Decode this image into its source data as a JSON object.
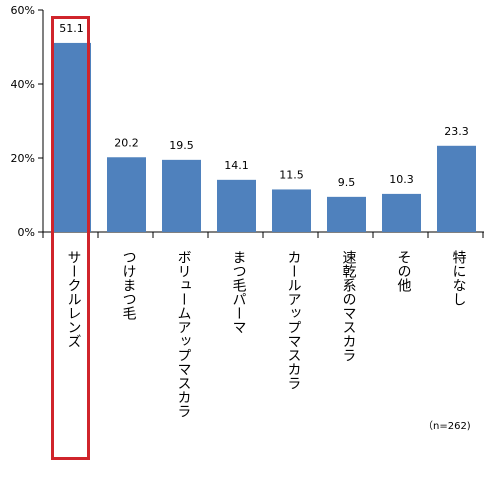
{
  "chart_data": {
    "type": "bar",
    "categories": [
      "サークルレンズ",
      "つけまつ毛",
      "ボリュームアップマスカラ",
      "まつ毛パーマ",
      "カールアップマスカラ",
      "速乾系のマスカラ",
      "その他",
      "特になし"
    ],
    "values": [
      51.1,
      20.2,
      19.5,
      14.1,
      11.5,
      9.5,
      10.3,
      23.3
    ],
    "data_labels": [
      "51.1",
      "20.2",
      "19.5",
      "14.1",
      "11.5",
      "9.5",
      "10.3",
      "23.3"
    ],
    "y_ticks": [
      "0%",
      "20%",
      "40%",
      "60%"
    ],
    "ylim": [
      0,
      60
    ],
    "grid": false,
    "bar_color": "#4f81bd",
    "highlighted_category": "サークルレンズ",
    "highlight_color": "#d0242b",
    "note": "（n=262)"
  }
}
